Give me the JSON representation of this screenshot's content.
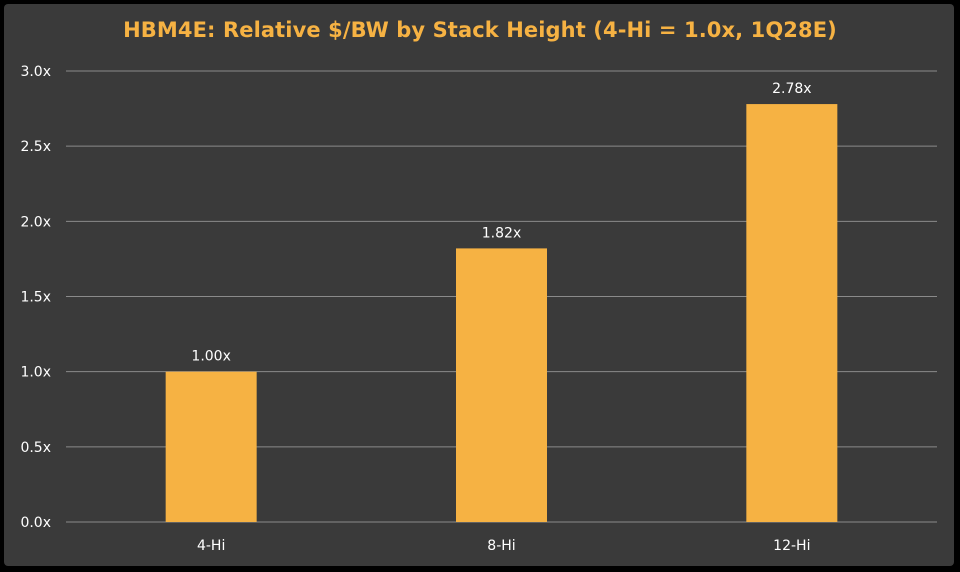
{
  "chart_data": {
    "type": "bar",
    "title": "HBM4E: Relative $/BW by Stack Height (4-Hi = 1.0x, 1Q28E)",
    "xlabel": "",
    "ylabel": "",
    "categories": [
      "4-Hi",
      "8-Hi",
      "12-Hi"
    ],
    "values": [
      1.0,
      1.82,
      2.78
    ],
    "data_labels": [
      "1.00x",
      "1.82x",
      "2.78x"
    ],
    "ylim": [
      0,
      3.0
    ],
    "yticks": [
      0.0,
      0.5,
      1.0,
      1.5,
      2.0,
      2.5,
      3.0
    ],
    "ytick_labels": [
      "0.0x",
      "0.5x",
      "1.0x",
      "1.5x",
      "2.0x",
      "2.5x",
      "3.0x"
    ],
    "grid": true,
    "legend": "none",
    "colors": {
      "background": "#3a3a3a",
      "bar": "#f6b243",
      "title": "#f6b243",
      "text": "#ffffff",
      "grid": "#8a8a8a"
    }
  }
}
